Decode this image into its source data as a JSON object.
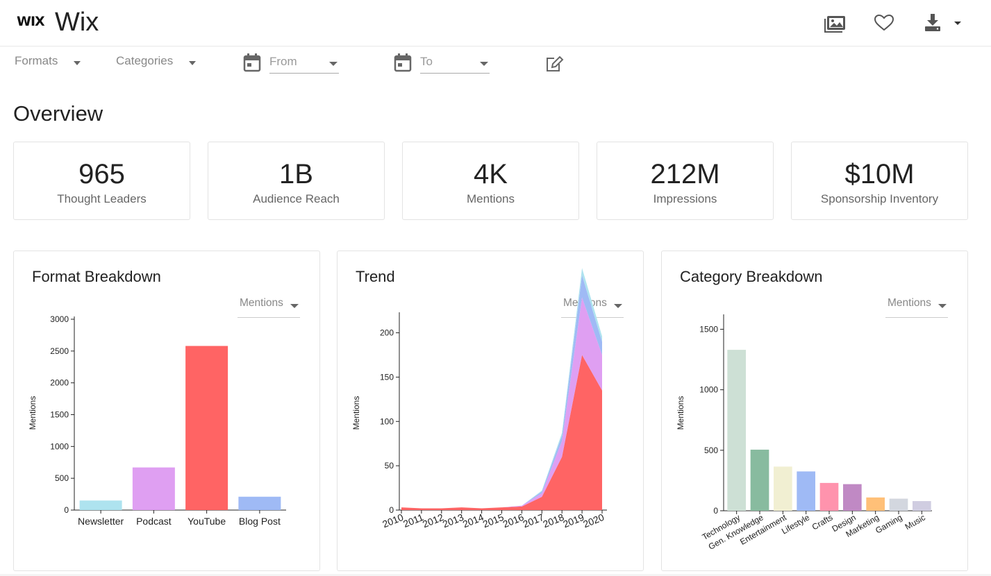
{
  "header": {
    "logo": "WIX",
    "brand": "Wix",
    "icons": [
      "gallery-icon",
      "heart-icon",
      "download-icon"
    ]
  },
  "filters": {
    "formats_label": "Formats",
    "categories_label": "Categories",
    "from_placeholder": "From",
    "to_placeholder": "To"
  },
  "overview": {
    "title": "Overview",
    "stats": [
      {
        "value": "965",
        "label": "Thought Leaders"
      },
      {
        "value": "1B",
        "label": "Audience Reach"
      },
      {
        "value": "4K",
        "label": "Mentions"
      },
      {
        "value": "212M",
        "label": "Impressions"
      },
      {
        "value": "$10M",
        "label": "Sponsorship Inventory"
      }
    ]
  },
  "panels": {
    "format": {
      "title": "Format Breakdown",
      "metric": "Mentions"
    },
    "trend": {
      "title": "Trend",
      "metric": "Mentions"
    },
    "category": {
      "title": "Category Breakdown",
      "metric": "Mentions"
    }
  },
  "chart_data": [
    {
      "type": "bar",
      "categories": [
        "Newsletter",
        "Podcast",
        "YouTube",
        "Blog Post"
      ],
      "values": [
        150,
        670,
        2580,
        210
      ],
      "colors": [
        "#aee3ef",
        "#df9ff2",
        "#ff6464",
        "#9fbaf5"
      ],
      "title": "",
      "xlabel": "",
      "ylabel": "Mentions",
      "ylim": [
        0,
        3000
      ],
      "yticks": [
        0,
        500,
        1000,
        1500,
        2000,
        2500,
        3000
      ]
    },
    {
      "type": "area",
      "x": [
        2010,
        2011,
        2012,
        2013,
        2014,
        2015,
        2016,
        2017,
        2018,
        2019,
        2020
      ],
      "xticks": [
        "2010",
        "2011",
        "2012",
        "2013",
        "2014",
        "2015",
        "2016",
        "2017",
        "2018",
        "2019",
        "2020"
      ],
      "series": [
        {
          "values": [
            3,
            2,
            2,
            3,
            2,
            3,
            4,
            15,
            60,
            175,
            135
          ],
          "color": "#ff6464"
        },
        {
          "values": [
            0,
            0,
            0,
            0,
            0,
            0,
            1,
            4,
            18,
            65,
            40
          ],
          "color": "#df9ff2"
        },
        {
          "values": [
            0,
            0,
            0,
            0,
            0,
            0,
            0,
            2,
            6,
            25,
            15
          ],
          "color": "#9fbaf5"
        },
        {
          "values": [
            0,
            0,
            0,
            0,
            0,
            0,
            0,
            1,
            3,
            8,
            6
          ],
          "color": "#aee3ef"
        }
      ],
      "title": "",
      "xlabel": "",
      "ylabel": "Mentions",
      "ylim": [
        0,
        220
      ],
      "yticks": [
        0,
        50,
        100,
        150,
        200
      ]
    },
    {
      "type": "bar",
      "categories": [
        "Technology",
        "Gen. Knowledge",
        "Entertainment",
        "Lifestyle",
        "Crafts",
        "Design",
        "Marketing",
        "Gaming",
        "Music"
      ],
      "values": [
        1330,
        505,
        365,
        325,
        230,
        220,
        110,
        100,
        80
      ],
      "colors": [
        "#cde0d5",
        "#88bb9f",
        "#f1efd2",
        "#9fbaf5",
        "#ff93ad",
        "#c089c4",
        "#ffc078",
        "#d3d7df",
        "#d0cde1"
      ],
      "title": "",
      "xlabel": "",
      "ylabel": "Mentions",
      "ylim": [
        0,
        1600
      ],
      "yticks": [
        0,
        500,
        1000,
        1500
      ]
    }
  ]
}
